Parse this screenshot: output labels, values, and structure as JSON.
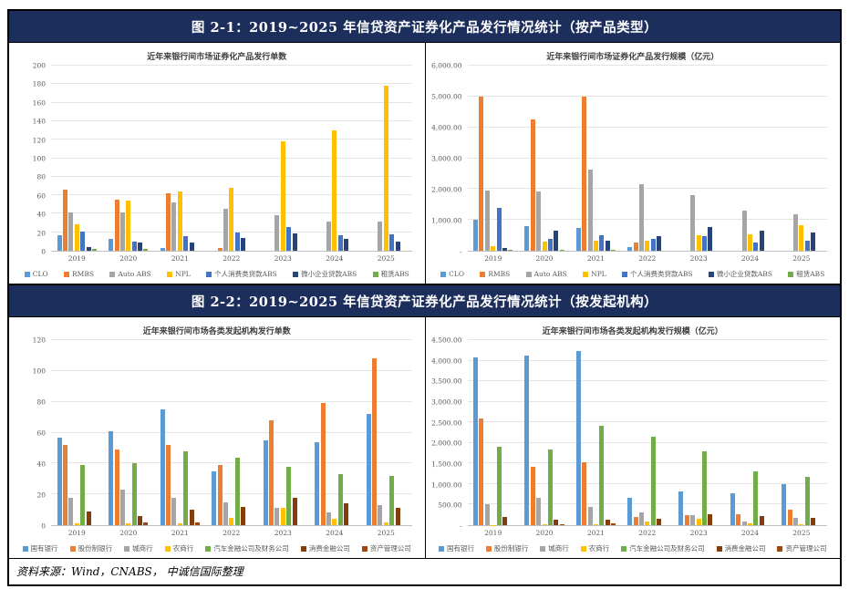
{
  "banners": [
    "图 2-1：2019~2025 年信贷资产证券化产品发行情况统计（按产品类型）",
    "图 2-2：2019~2025 年信贷资产证券化产品发行情况统计（按发起机构）"
  ],
  "source": "资料来源：Wind，CNABS， 中诚信国际整理",
  "colors": {
    "banner_background": "#1c2e5c",
    "banner_text": "#ffffff",
    "gridline": "#e4e4e4",
    "axis_text": "#595959"
  },
  "chart_data": [
    {
      "type": "bar",
      "title": "近年来银行间市场证券化产品发行单数",
      "categories": [
        "2019",
        "2020",
        "2021",
        "2022",
        "2023",
        "2024",
        "2025"
      ],
      "series": [
        {
          "name": "CLO",
          "color": "#5b9bd5",
          "values": [
            17,
            13,
            3,
            0,
            0,
            0,
            0
          ]
        },
        {
          "name": "RMBS",
          "color": "#ed7d31",
          "values": [
            66,
            55,
            62,
            3,
            0,
            0,
            0
          ]
        },
        {
          "name": "Auto ABS",
          "color": "#a5a5a5",
          "values": [
            41,
            41,
            52,
            45,
            38,
            32,
            32
          ]
        },
        {
          "name": "NPL",
          "color": "#ffc000",
          "values": [
            29,
            54,
            64,
            68,
            118,
            130,
            178
          ]
        },
        {
          "name": "个人消费类贷款ABS",
          "color": "#4472c4",
          "values": [
            21,
            10,
            16,
            20,
            26,
            17,
            18
          ]
        },
        {
          "name": "微小企业贷款ABS",
          "color": "#264478",
          "values": [
            4,
            9,
            9,
            14,
            19,
            13,
            10
          ]
        },
        {
          "name": "租赁ABS",
          "color": "#70ad47",
          "values": [
            2,
            2,
            0,
            0,
            0,
            0,
            0
          ]
        }
      ],
      "ylim": [
        0,
        200
      ],
      "ystep": 20,
      "tick_format": "int",
      "grid": true,
      "legend_position": "bottom"
    },
    {
      "type": "bar",
      "title": "近年来银行间市场证券化产品发行规模（亿元）",
      "categories": [
        "2019",
        "2020",
        "2021",
        "2022",
        "2023",
        "2024",
        "2025"
      ],
      "series": [
        {
          "name": "CLO",
          "color": "#5b9bd5",
          "values": [
            1000,
            800,
            750,
            110,
            0,
            0,
            0
          ]
        },
        {
          "name": "RMBS",
          "color": "#ed7d31",
          "values": [
            5000,
            4250,
            5000,
            260,
            0,
            0,
            0
          ]
        },
        {
          "name": "Auto ABS",
          "color": "#a5a5a5",
          "values": [
            1950,
            1930,
            2630,
            2170,
            1800,
            1290,
            1190
          ]
        },
        {
          "name": "NPL",
          "color": "#ffc000",
          "values": [
            150,
            290,
            320,
            320,
            490,
            520,
            820
          ]
        },
        {
          "name": "个人消费类贷款ABS",
          "color": "#4472c4",
          "values": [
            1400,
            390,
            490,
            380,
            480,
            260,
            330
          ]
        },
        {
          "name": "微小企业贷款ABS",
          "color": "#264478",
          "values": [
            100,
            640,
            340,
            470,
            760,
            660,
            600
          ]
        },
        {
          "name": "租赁ABS",
          "color": "#70ad47",
          "values": [
            30,
            40,
            30,
            0,
            0,
            0,
            0
          ]
        }
      ],
      "ylim": [
        0,
        6000
      ],
      "ystep": 1000,
      "tick_format": "decimal2",
      "grid": true,
      "legend_position": "bottom"
    },
    {
      "type": "bar",
      "title": "近年来银行间市场各类发起机构发行单数",
      "categories": [
        "2019",
        "2020",
        "2021",
        "2022",
        "2023",
        "2024",
        "2025"
      ],
      "series": [
        {
          "name": "国有银行",
          "color": "#5b9bd5",
          "values": [
            57,
            61,
            75,
            35,
            55,
            54,
            72
          ]
        },
        {
          "name": "股份制银行",
          "color": "#ed7d31",
          "values": [
            52,
            49,
            52,
            39,
            68,
            79,
            108
          ]
        },
        {
          "name": "城商行",
          "color": "#a5a5a5",
          "values": [
            18,
            23,
            18,
            15,
            11,
            8,
            13
          ]
        },
        {
          "name": "农商行",
          "color": "#ffc000",
          "values": [
            1,
            1,
            1,
            5,
            11,
            4,
            2
          ]
        },
        {
          "name": "汽车金融公司及财务公司",
          "color": "#70ad47",
          "values": [
            39,
            40,
            48,
            44,
            38,
            33,
            32
          ]
        },
        {
          "name": "消费金融公司",
          "color": "#843c0c",
          "values": [
            9,
            6,
            10,
            12,
            18,
            14,
            11
          ]
        },
        {
          "name": "资产管理公司",
          "color": "#9e480e",
          "values": [
            0,
            2,
            2,
            0,
            0,
            0,
            0
          ]
        }
      ],
      "ylim": [
        0,
        120
      ],
      "ystep": 20,
      "tick_format": "int",
      "grid": true,
      "legend_position": "bottom"
    },
    {
      "type": "bar",
      "title": "近年来银行间市场各类发起机构发行规模（亿元）",
      "categories": [
        "2019",
        "2020",
        "2021",
        "2022",
        "2023",
        "2024",
        "2025"
      ],
      "series": [
        {
          "name": "国有银行",
          "color": "#5b9bd5",
          "values": [
            4080,
            4130,
            4240,
            670,
            820,
            780,
            1000
          ]
        },
        {
          "name": "股份制银行",
          "color": "#ed7d31",
          "values": [
            2590,
            1410,
            1520,
            200,
            240,
            260,
            380
          ]
        },
        {
          "name": "城商行",
          "color": "#a5a5a5",
          "values": [
            500,
            660,
            450,
            310,
            250,
            100,
            180
          ]
        },
        {
          "name": "农商行",
          "color": "#ffc000",
          "values": [
            10,
            30,
            30,
            80,
            150,
            40,
            20
          ]
        },
        {
          "name": "汽车金融公司及财务公司",
          "color": "#70ad47",
          "values": [
            1910,
            1840,
            2420,
            2160,
            1800,
            1300,
            1180
          ]
        },
        {
          "name": "消费金融公司",
          "color": "#843c0c",
          "values": [
            190,
            130,
            140,
            150,
            260,
            230,
            170
          ]
        },
        {
          "name": "资产管理公司",
          "color": "#9e480e",
          "values": [
            0,
            30,
            40,
            0,
            0,
            0,
            0
          ]
        }
      ],
      "ylim": [
        0,
        4500
      ],
      "ystep": 500,
      "tick_format": "decimal2",
      "grid": true,
      "legend_position": "bottom"
    }
  ]
}
